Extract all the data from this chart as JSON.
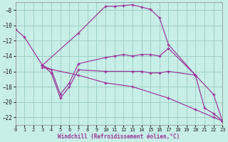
{
  "xlabel": "Windchill (Refroidissement éolien,°C)",
  "bg_color": "#c8eee8",
  "grid_color": "#99ccbb",
  "line_color": "#993399",
  "xlim": [
    0,
    23
  ],
  "ylim": [
    -23,
    -7
  ],
  "xticks": [
    0,
    1,
    2,
    3,
    4,
    5,
    6,
    7,
    8,
    9,
    10,
    11,
    12,
    13,
    14,
    15,
    16,
    17,
    18,
    19,
    20,
    21,
    22,
    23
  ],
  "yticks": [
    -22,
    -20,
    -18,
    -16,
    -14,
    -12,
    -10,
    -8
  ],
  "lines": [
    {
      "x": [
        0,
        1,
        3,
        7,
        10,
        11,
        12,
        13,
        14,
        15,
        16,
        17,
        20
      ],
      "y": [
        -10.5,
        -11.5,
        -15.2,
        -11.0,
        -7.5,
        -7.5,
        -7.4,
        -7.3,
        -7.6,
        -7.9,
        -9.0,
        -12.5,
        -16.5
      ]
    },
    {
      "x": [
        3,
        4,
        5,
        6,
        7,
        10,
        11,
        12,
        13,
        14,
        15,
        16,
        17,
        20,
        22,
        23
      ],
      "y": [
        -15.2,
        -15.8,
        -19.0,
        -17.5,
        -15.0,
        -14.2,
        -14.0,
        -13.8,
        -14.0,
        -13.8,
        -13.8,
        -14.0,
        -13.0,
        -16.5,
        -19.0,
        -22.5
      ]
    },
    {
      "x": [
        3,
        4,
        5,
        6,
        7,
        10,
        13,
        14,
        15,
        16,
        17,
        20,
        21,
        22,
        23
      ],
      "y": [
        -15.2,
        -16.2,
        -19.5,
        -18.0,
        -15.8,
        -16.0,
        -16.0,
        -16.0,
        -16.2,
        -16.2,
        -16.0,
        -16.5,
        -20.8,
        -21.5,
        -22.5
      ]
    },
    {
      "x": [
        3,
        7,
        10,
        13,
        17,
        20,
        22,
        23
      ],
      "y": [
        -15.5,
        -16.5,
        -17.5,
        -18.0,
        -19.5,
        -21.0,
        -22.0,
        -22.5
      ]
    }
  ]
}
